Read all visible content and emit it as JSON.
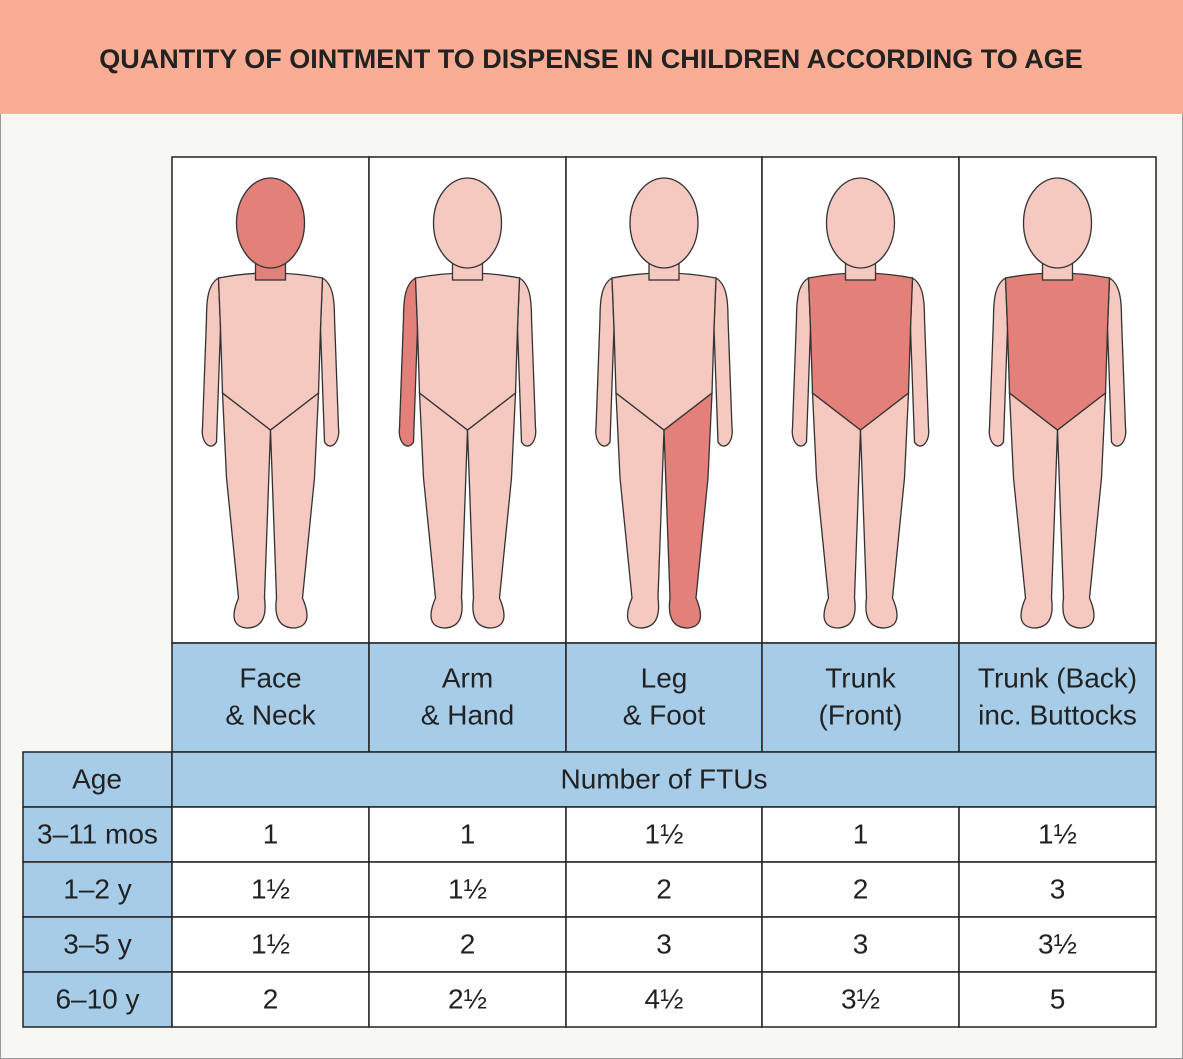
{
  "title": "QUANTITY OF OINTMENT TO DISPENSE IN CHILDREN ACCORDING TO AGE",
  "columns": [
    [
      "Face",
      "& Neck"
    ],
    [
      "Arm",
      "& Hand"
    ],
    [
      "Leg",
      "& Foot"
    ],
    [
      "Trunk",
      "(Front)"
    ],
    [
      "Trunk (Back)",
      "inc. Buttocks"
    ]
  ],
  "table": {
    "age_header": "Age",
    "value_header": "Number of FTUs",
    "rows": [
      [
        "3–11 mos",
        "1",
        "1",
        "1½",
        "1",
        "1½"
      ],
      [
        "1–2 y",
        "1½",
        "1½",
        "2",
        "2",
        "3"
      ],
      [
        "3–5 y",
        "1½",
        "2",
        "3",
        "3",
        "3½"
      ],
      [
        "6–10 y",
        "2",
        "2½",
        "4½",
        "3½",
        "5"
      ]
    ]
  }
}
